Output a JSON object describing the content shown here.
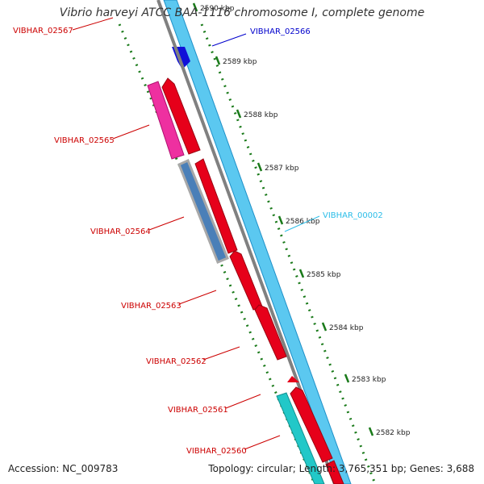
{
  "title": "Vibrio harveyi ATCC BAA-1116 chromosome I, complete genome",
  "footer": {
    "accession": "Accession: NC_009783",
    "summary": "Topology: circular; Length: 3,765,351 bp; Genes: 3,688"
  },
  "colors": {
    "backbone": "#808080",
    "forward_track": "#5bc8f0",
    "reverse_track": "#e6001a",
    "tick_color": "#1a7a1a",
    "label_red": "#cc0000",
    "label_blue": "#0000cc",
    "label_cyan": "#2bbde8"
  },
  "ticks": [
    "2590 kbp",
    "2589 kbp",
    "2588 kbp",
    "2587 kbp",
    "2586 kbp",
    "2585 kbp",
    "2584 kbp",
    "2583 kbp",
    "2582 kbp"
  ],
  "gene_labels": [
    {
      "text": "VIBHAR_02567",
      "color": "red"
    },
    {
      "text": "VIBHAR_02566",
      "color": "blue"
    },
    {
      "text": "VIBHAR_02565",
      "color": "red"
    },
    {
      "text": "VIBHAR_00002",
      "color": "cyan"
    },
    {
      "text": "VIBHAR_02564",
      "color": "red"
    },
    {
      "text": "VIBHAR_02563",
      "color": "red"
    },
    {
      "text": "VIBHAR_02562",
      "color": "red"
    },
    {
      "text": "VIBHAR_02561",
      "color": "red"
    },
    {
      "text": "VIBHAR_02560",
      "color": "red"
    }
  ]
}
